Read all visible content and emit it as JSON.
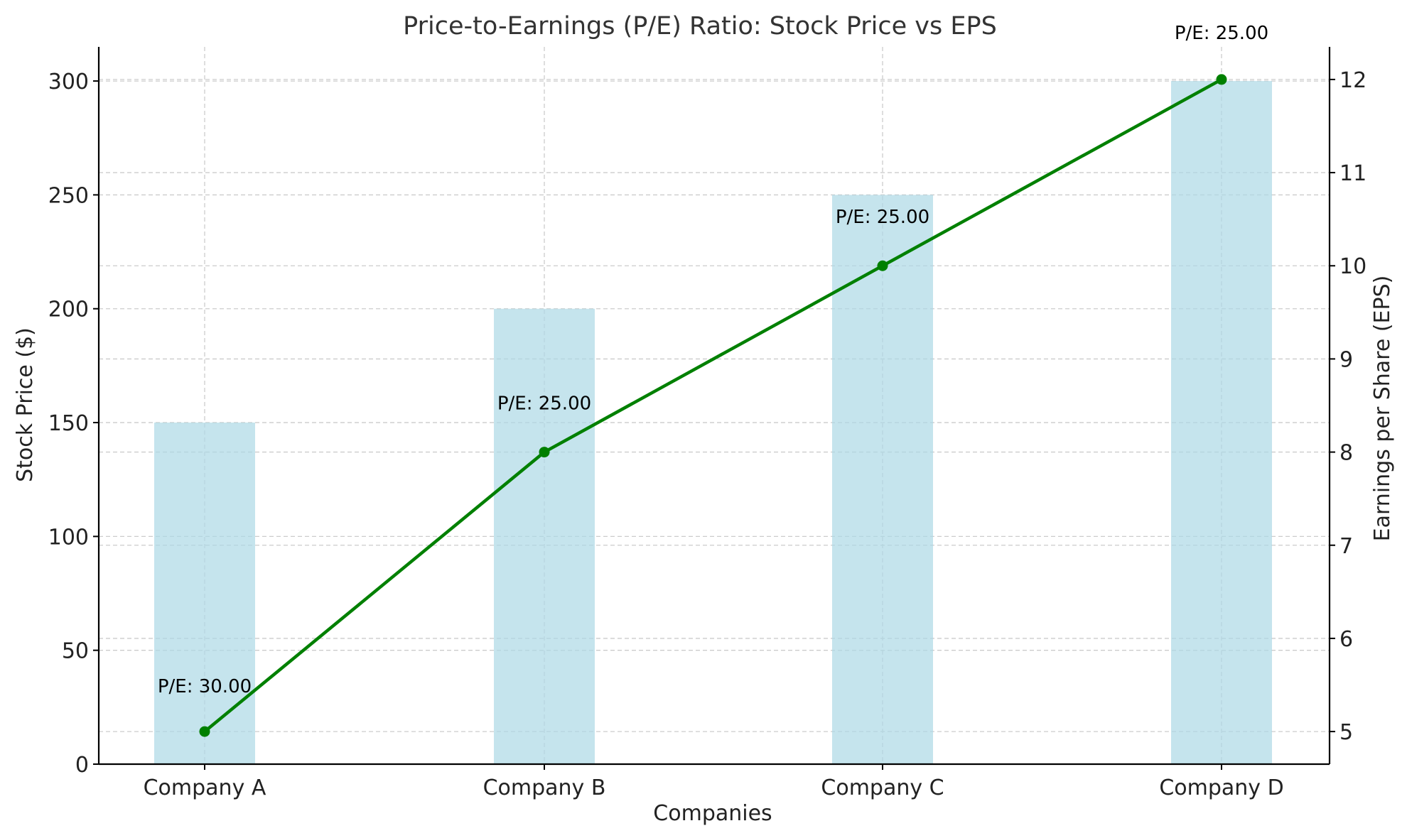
{
  "chart_data": {
    "type": "bar",
    "title": "Price-to-Earnings (P/E) Ratio: Stock Price vs EPS",
    "xlabel": "Companies",
    "ylabel": "Stock Price ($)",
    "y2label": "Earnings per Share (EPS)",
    "categories": [
      "Company A",
      "Company B",
      "Company C",
      "Company D"
    ],
    "ylim": [
      0,
      315
    ],
    "y2lim": [
      4.65,
      12.35
    ],
    "yticks": [
      0,
      50,
      100,
      150,
      200,
      250,
      300
    ],
    "y2ticks": [
      5,
      6,
      7,
      8,
      9,
      10,
      11,
      12
    ],
    "grid": true,
    "series": [
      {
        "type": "bar",
        "axis": "left",
        "values": [
          150,
          200,
          250,
          300
        ],
        "color": "#add8e6"
      },
      {
        "type": "line",
        "axis": "right",
        "values": [
          5,
          8,
          10,
          12
        ],
        "color": "#008000"
      }
    ],
    "annotations": [
      "P/E: 30.00",
      "P/E: 25.00",
      "P/E: 25.00",
      "P/E: 25.00"
    ]
  }
}
